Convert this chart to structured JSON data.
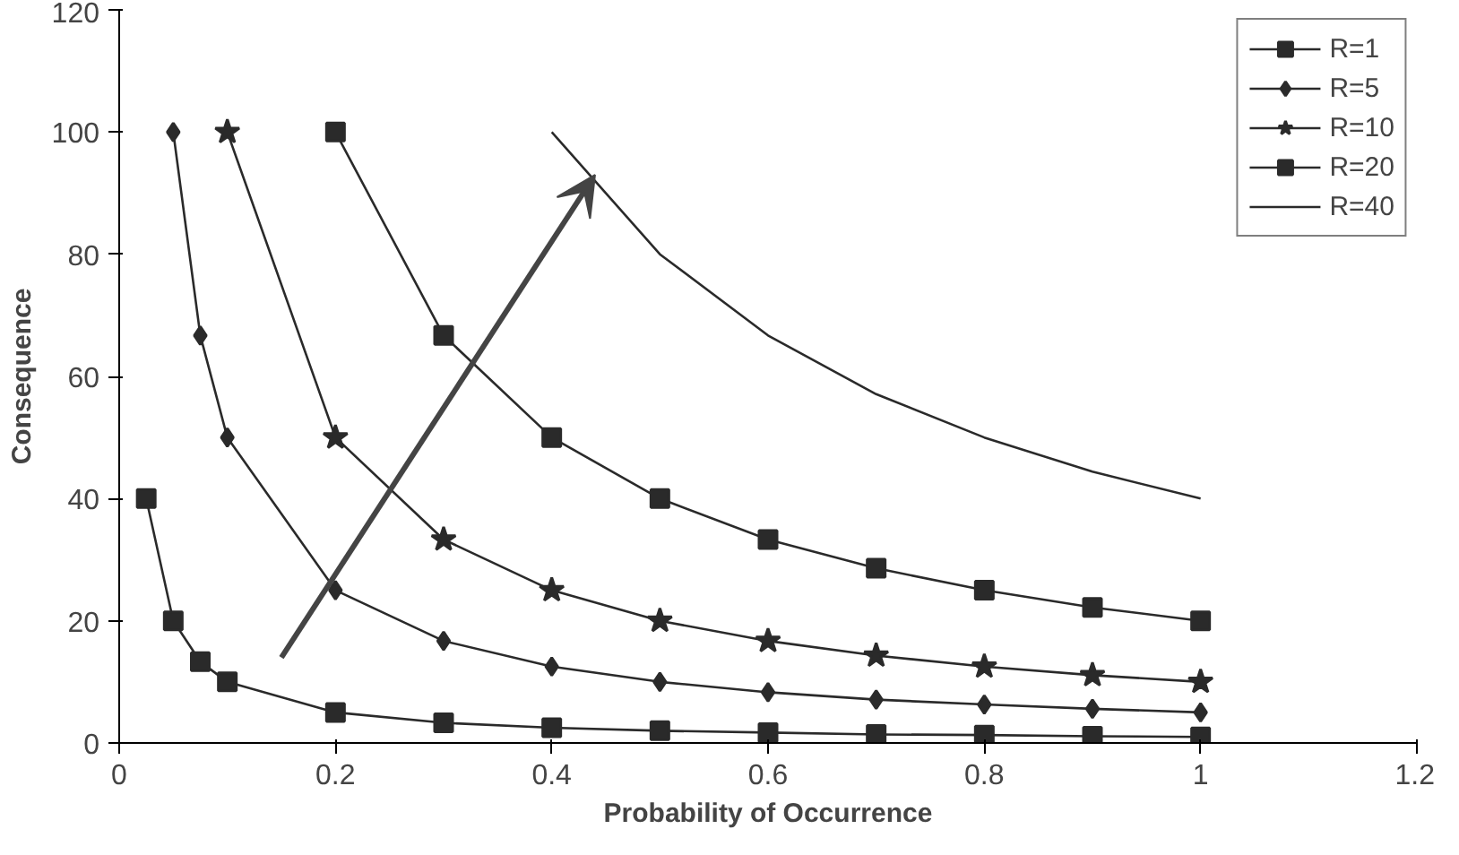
{
  "chart_data": {
    "type": "line",
    "xlabel": "Probability of Occurrence",
    "ylabel": "Consequence",
    "xlim": [
      0,
      1.2
    ],
    "ylim": [
      0,
      120
    ],
    "xticks": [
      0,
      0.2,
      0.4,
      0.6,
      0.8,
      1,
      1.2
    ],
    "yticks": [
      0,
      20,
      40,
      60,
      80,
      100,
      120
    ],
    "grid": false,
    "legend": "right",
    "series": [
      {
        "name": "R=1",
        "color": "#2a2a2a",
        "marker": "square",
        "x": [
          0.025,
          0.05,
          0.075,
          0.1,
          0.2,
          0.3,
          0.4,
          0.5,
          0.6,
          0.7,
          0.8,
          0.9,
          1
        ],
        "values": [
          40,
          20,
          13.3,
          10,
          5,
          3.3,
          2.5,
          2,
          1.7,
          1.4,
          1.3,
          1.1,
          1
        ]
      },
      {
        "name": "R=5",
        "color": "#2a2a2a",
        "marker": "diamond",
        "x": [
          0.05,
          0.075,
          0.1,
          0.2,
          0.3,
          0.4,
          0.5,
          0.6,
          0.7,
          0.8,
          0.9,
          1
        ],
        "values": [
          100,
          66.7,
          50,
          25,
          16.7,
          12.5,
          10,
          8.3,
          7.1,
          6.3,
          5.6,
          5
        ]
      },
      {
        "name": "R=10",
        "color": "#2a2a2a",
        "marker": "star",
        "x": [
          0.1,
          0.2,
          0.3,
          0.4,
          0.5,
          0.6,
          0.7,
          0.8,
          0.9,
          1
        ],
        "values": [
          100,
          50,
          33.3,
          25,
          20,
          16.7,
          14.3,
          12.5,
          11.1,
          10
        ]
      },
      {
        "name": "R=20",
        "color": "#2a2a2a",
        "marker": "square",
        "x": [
          0.2,
          0.3,
          0.4,
          0.5,
          0.6,
          0.7,
          0.8,
          0.9,
          1
        ],
        "values": [
          100,
          66.7,
          50,
          40,
          33.3,
          28.6,
          25,
          22.2,
          20
        ]
      },
      {
        "name": "R=40",
        "color": "#2a2a2a",
        "marker": "none",
        "x": [
          0.4,
          0.5,
          0.6,
          0.7,
          0.8,
          0.9,
          1
        ],
        "values": [
          100,
          80,
          66.7,
          57.1,
          50,
          44.4,
          40
        ]
      }
    ]
  }
}
